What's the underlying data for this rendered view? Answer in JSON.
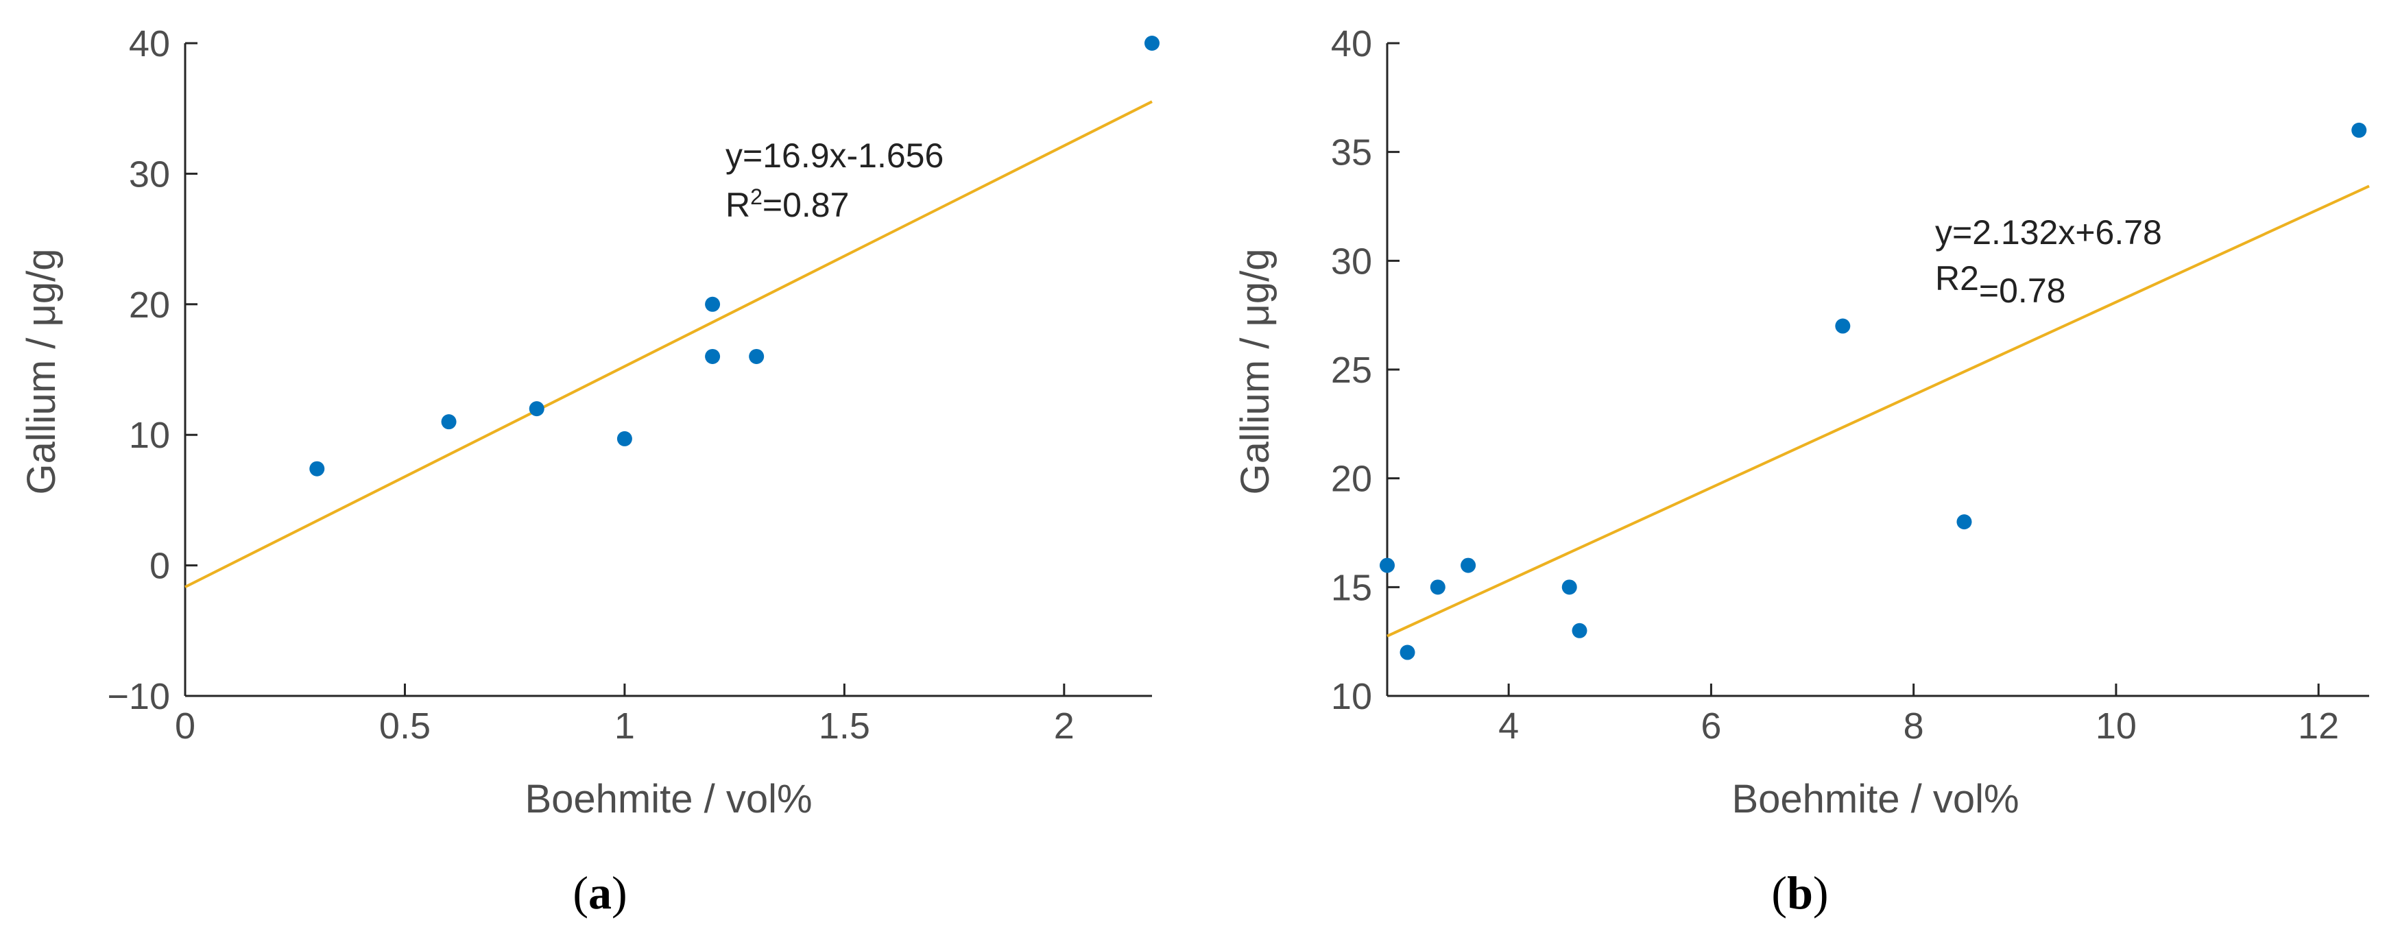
{
  "colors": {
    "point": "#0072bd",
    "fit": "#edb120",
    "axis": "#262626",
    "text": "#4d4d4d"
  },
  "chart_data": [
    {
      "type": "scatter",
      "panel_label_open": "(",
      "panel_label_letter": "a",
      "panel_label_close": ")",
      "xlabel": "Boehmite / vol%",
      "ylabel": "Gallium / μg/g",
      "xlim": [
        0,
        2.2
      ],
      "ylim": [
        -10,
        40
      ],
      "xticks": [
        0,
        0.5,
        1,
        1.5,
        2
      ],
      "xtick_labels": [
        "0",
        "0.5",
        "1",
        "1.5",
        "2"
      ],
      "yticks": [
        -10,
        0,
        10,
        20,
        30,
        40
      ],
      "ytick_labels": [
        "−10",
        "0",
        "10",
        "20",
        "30",
        "40"
      ],
      "points": [
        {
          "x": 0.3,
          "y": 7.4
        },
        {
          "x": 0.6,
          "y": 11
        },
        {
          "x": 0.8,
          "y": 12
        },
        {
          "x": 1.0,
          "y": 9.7
        },
        {
          "x": 1.2,
          "y": 20
        },
        {
          "x": 1.2,
          "y": 16
        },
        {
          "x": 1.3,
          "y": 16
        },
        {
          "x": 2.2,
          "y": 40
        }
      ],
      "fit": {
        "slope": 16.9,
        "intercept": -1.656,
        "x_range": [
          0,
          2.2
        ]
      },
      "annotation": {
        "eq": "y=16.9x-1.656",
        "r_label": "R",
        "r_sup": "2",
        "r_value": "=0.87"
      }
    },
    {
      "type": "scatter",
      "panel_label_open": "(",
      "panel_label_letter": "b",
      "panel_label_close": ")",
      "xlabel": "Boehmite / vol%",
      "ylabel": "Gallium / μg/g",
      "xlim": [
        2.8,
        12.5
      ],
      "ylim": [
        10,
        40
      ],
      "xticks": [
        4,
        6,
        8,
        10,
        12
      ],
      "xtick_labels": [
        "4",
        "6",
        "8",
        "10",
        "12"
      ],
      "yticks": [
        10,
        15,
        20,
        25,
        30,
        35,
        40
      ],
      "ytick_labels": [
        "10",
        "15",
        "20",
        "25",
        "30",
        "35",
        "40"
      ],
      "points": [
        {
          "x": 2.8,
          "y": 16
        },
        {
          "x": 3.0,
          "y": 12
        },
        {
          "x": 3.3,
          "y": 15
        },
        {
          "x": 3.6,
          "y": 16
        },
        {
          "x": 4.6,
          "y": 15
        },
        {
          "x": 4.7,
          "y": 13
        },
        {
          "x": 7.3,
          "y": 27
        },
        {
          "x": 8.5,
          "y": 18
        },
        {
          "x": 12.4,
          "y": 36
        }
      ],
      "fit": {
        "slope": 2.132,
        "intercept": 6.78,
        "x_range": [
          2.8,
          12.5
        ]
      },
      "annotation": {
        "eq": "y=2.132x+6.78",
        "r_label": "R2",
        "r_sup": "",
        "r_value": "=0.78"
      }
    }
  ]
}
